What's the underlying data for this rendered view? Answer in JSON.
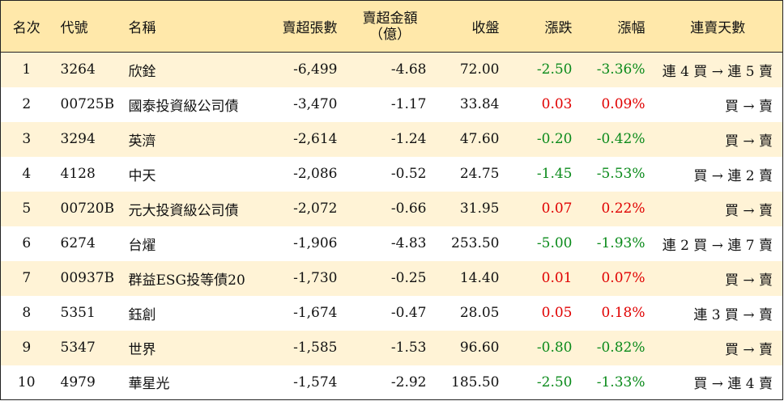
{
  "headers": {
    "rank": "名次",
    "code": "代號",
    "name": "名稱",
    "net_shares": "賣超張數",
    "net_amount_line1": "賣超金額",
    "net_amount_line2": "（億）",
    "close": "收盤",
    "change": "漲跌",
    "pct": "漲幅",
    "streak": "連賣天數"
  },
  "colors": {
    "header_bg": "#ffe8aa",
    "stripe_bg": "#fff3d6",
    "up": "#e00000",
    "down": "#0a8a1a"
  },
  "rows": [
    {
      "rank": "1",
      "code": "3264",
      "name": "欣銓",
      "shares": "-6,499",
      "amount": "-4.68",
      "close": "72.00",
      "change": "-2.50",
      "pct": "-3.36%",
      "dir": "down",
      "streak": "連 4 買 → 連 5 賣"
    },
    {
      "rank": "2",
      "code": "00725B",
      "name": "國泰投資級公司債",
      "shares": "-3,470",
      "amount": "-1.17",
      "close": "33.84",
      "change": "0.03",
      "pct": "0.09%",
      "dir": "up",
      "streak": "買 → 賣"
    },
    {
      "rank": "3",
      "code": "3294",
      "name": "英濟",
      "shares": "-2,614",
      "amount": "-1.24",
      "close": "47.60",
      "change": "-0.20",
      "pct": "-0.42%",
      "dir": "down",
      "streak": "買 → 賣"
    },
    {
      "rank": "4",
      "code": "4128",
      "name": "中天",
      "shares": "-2,086",
      "amount": "-0.52",
      "close": "24.75",
      "change": "-1.45",
      "pct": "-5.53%",
      "dir": "down",
      "streak": "買 → 連 2 賣"
    },
    {
      "rank": "5",
      "code": "00720B",
      "name": "元大投資級公司債",
      "shares": "-2,072",
      "amount": "-0.66",
      "close": "31.95",
      "change": "0.07",
      "pct": "0.22%",
      "dir": "up",
      "streak": "買 → 賣"
    },
    {
      "rank": "6",
      "code": "6274",
      "name": "台燿",
      "shares": "-1,906",
      "amount": "-4.83",
      "close": "253.50",
      "change": "-5.00",
      "pct": "-1.93%",
      "dir": "down",
      "streak": "連 2 買 → 連 7 賣"
    },
    {
      "rank": "7",
      "code": "00937B",
      "name": "群益ESG投等債20",
      "shares": "-1,730",
      "amount": "-0.25",
      "close": "14.40",
      "change": "0.01",
      "pct": "0.07%",
      "dir": "up",
      "streak": "買 → 賣"
    },
    {
      "rank": "8",
      "code": "5351",
      "name": "鈺創",
      "shares": "-1,674",
      "amount": "-0.47",
      "close": "28.05",
      "change": "0.05",
      "pct": "0.18%",
      "dir": "up",
      "streak": "連 3 買 → 賣"
    },
    {
      "rank": "9",
      "code": "5347",
      "name": "世界",
      "shares": "-1,585",
      "amount": "-1.53",
      "close": "96.60",
      "change": "-0.80",
      "pct": "-0.82%",
      "dir": "down",
      "streak": "買 → 賣"
    },
    {
      "rank": "10",
      "code": "4979",
      "name": "華星光",
      "shares": "-1,574",
      "amount": "-2.92",
      "close": "185.50",
      "change": "-2.50",
      "pct": "-1.33%",
      "dir": "down",
      "streak": "買 → 連 4 賣"
    }
  ]
}
